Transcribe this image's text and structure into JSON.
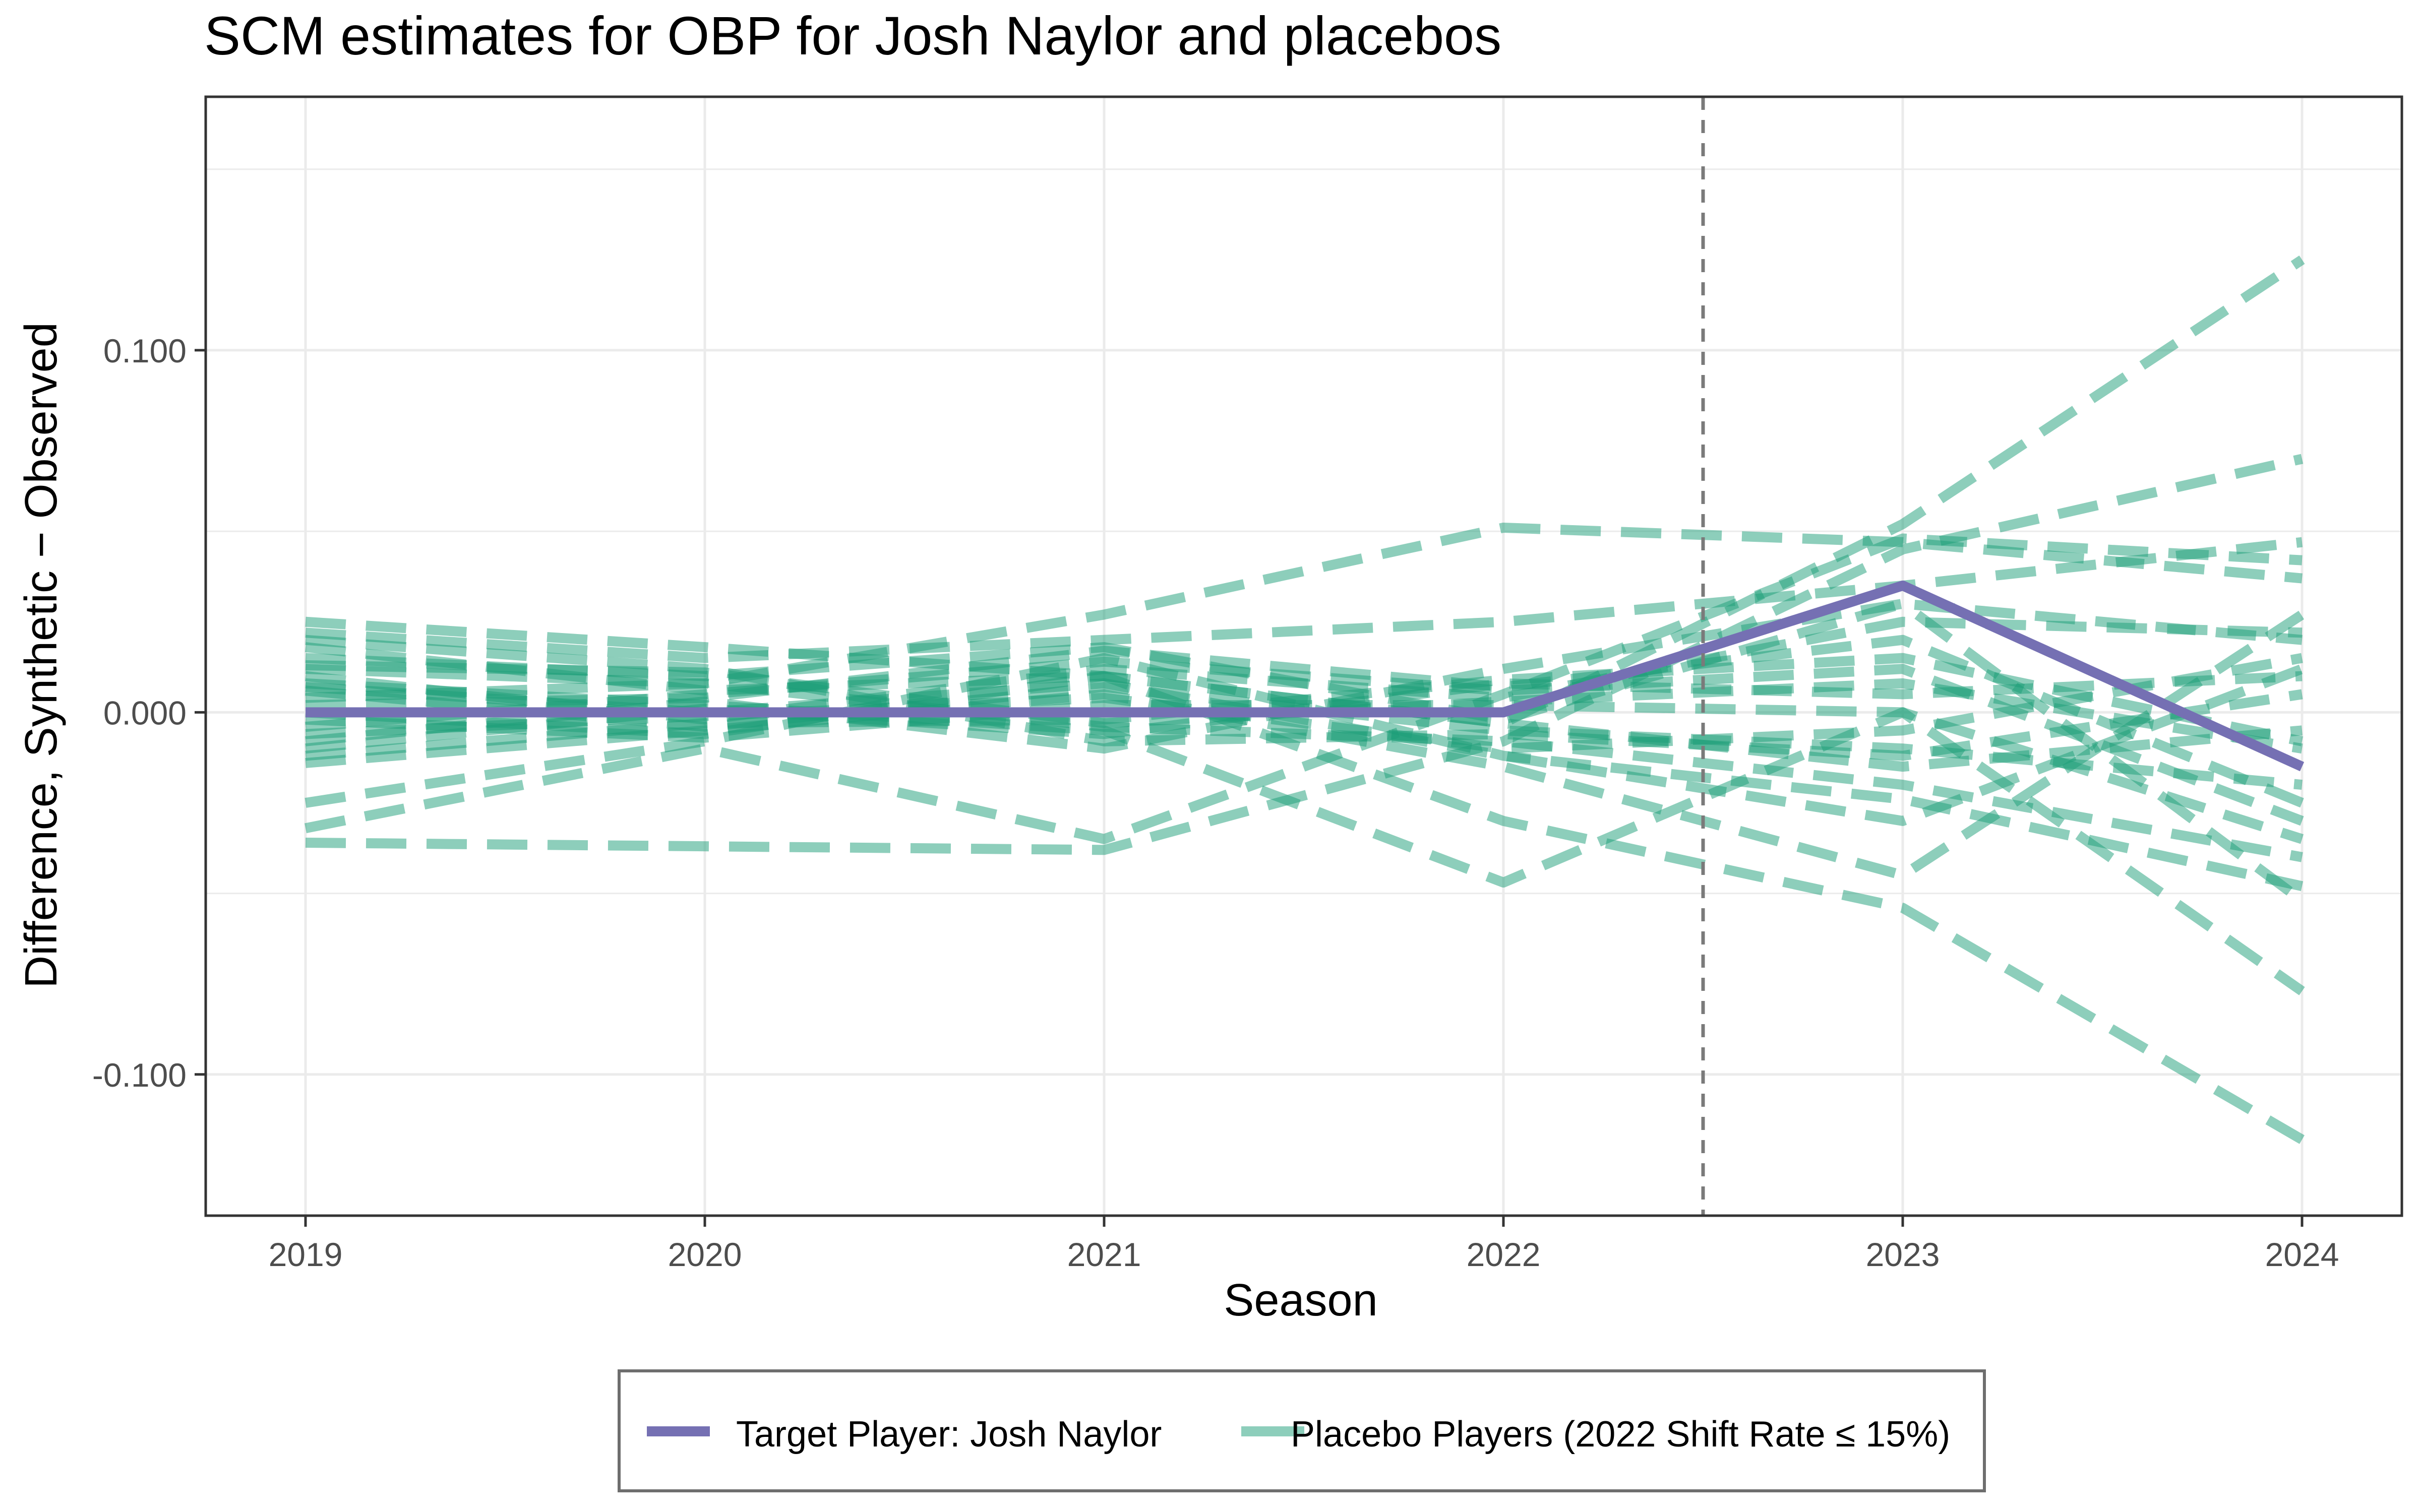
{
  "chart_data": {
    "type": "line",
    "title": "SCM estimates for OBP for Josh Naylor and placebos",
    "xlabel": "Season",
    "ylabel": "Difference, Synthetic − Observed",
    "x": [
      2019,
      2020,
      2021,
      2022,
      2023,
      2024
    ],
    "x_tick_labels": [
      "2019",
      "2020",
      "2021",
      "2022",
      "2023",
      "2024"
    ],
    "xlim": [
      2018.75,
      2024.25
    ],
    "ylim": [
      -0.139,
      0.17
    ],
    "y_ticks": [
      -0.1,
      0.0,
      0.1
    ],
    "y_tick_labels": [
      "-0.100",
      "0.000",
      "0.100"
    ],
    "grid": true,
    "treatment_line_x": 2022.5,
    "legend_position": "bottom",
    "legend": [
      {
        "label": "Target Player: Josh Naylor",
        "color": "#7570b3",
        "style": "solid"
      },
      {
        "label": "Placebo Players (2022 Shift Rate ≤ 15%)",
        "color": "#1b9e77",
        "style": "dashed"
      }
    ],
    "colors": {
      "target": "#7570b3",
      "placebo": "#1b9e77",
      "treatment_line": "#7a7a7a",
      "grid": "#ebebeb",
      "panel_border": "#333333"
    },
    "series": [
      {
        "name": "Target Player: Josh Naylor",
        "values": [
          0.0,
          0.0,
          0.0,
          0.0,
          0.035,
          -0.015
        ]
      }
    ],
    "placebo_series": [
      [
        0.025,
        0.018,
        0.01,
        -0.003,
        0.052,
        0.125
      ],
      [
        -0.036,
        -0.037,
        -0.038,
        -0.008,
        0.045,
        0.07
      ],
      [
        0.012,
        0.008,
        0.027,
        0.051,
        0.047,
        0.037
      ],
      [
        -0.032,
        -0.01,
        -0.035,
        0.005,
        0.048,
        0.042
      ],
      [
        0.022,
        0.015,
        0.02,
        0.025,
        0.035,
        0.047
      ],
      [
        -0.025,
        -0.008,
        0.015,
        -0.012,
        -0.024,
        -0.048
      ],
      [
        0.018,
        0.006,
        0.01,
        -0.03,
        -0.054,
        -0.118
      ],
      [
        0.008,
        0.002,
        -0.005,
        -0.047,
        0.0,
        -0.077
      ],
      [
        -0.014,
        -0.005,
        0.005,
        -0.015,
        -0.045,
        0.027
      ],
      [
        0.015,
        0.01,
        0.018,
        -0.002,
        0.03,
        0.02
      ],
      [
        -0.008,
        0.003,
        -0.01,
        0.012,
        0.03,
        -0.052
      ],
      [
        0.01,
        -0.002,
        0.012,
        0.004,
        0.025,
        0.022
      ],
      [
        0.004,
        0.008,
        -0.004,
        -0.008,
        -0.02,
        -0.04
      ],
      [
        -0.004,
        0.005,
        0.014,
        0.006,
        0.012,
        -0.03
      ],
      [
        0.006,
        -0.004,
        0.007,
        -0.005,
        -0.01,
        -0.02
      ],
      [
        -0.01,
        0.001,
        -0.006,
        0.008,
        0.005,
        0.01
      ],
      [
        0.0,
        -0.006,
        0.01,
        -0.003,
        -0.015,
        -0.005
      ],
      [
        0.013,
        0.011,
        -0.003,
        0.003,
        0.008,
        -0.01
      ],
      [
        -0.006,
        -0.001,
        0.004,
        -0.01,
        -0.005,
        0.015
      ],
      [
        0.002,
        0.004,
        0.017,
        0.007,
        0.02,
        -0.025
      ],
      [
        0.02,
        0.012,
        -0.008,
        -0.006,
        -0.012,
        0.005
      ],
      [
        -0.002,
        -0.007,
        0.002,
        0.002,
        0.0,
        -0.035
      ],
      [
        0.007,
        0.0,
        0.008,
        -0.012,
        -0.03,
        0.012
      ],
      [
        -0.012,
        -0.003,
        -0.002,
        0.009,
        0.015,
        -0.008
      ]
    ]
  }
}
